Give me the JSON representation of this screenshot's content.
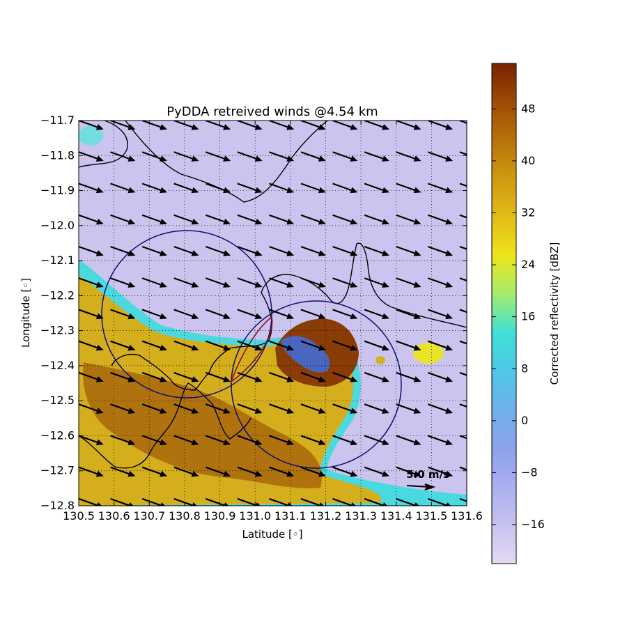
{
  "figure": {
    "title": "PyDDA retreived winds @4.54 km",
    "xlabel": "Latitude [◦]",
    "ylabel": "Longitude [◦]",
    "quiver_key": "5.0 m/s"
  },
  "colors": {
    "background_echo": "#cbc4ef",
    "land_echo": "#d6b21e",
    "coastline": "#000000",
    "radar_ring": "#0b0b6e",
    "dual_doppler_lobe": "#8b0d1e",
    "arrow": "#000000"
  },
  "colorbar": {
    "label": "Corrected reflectivity [dBZ]",
    "min": -22,
    "max": 55,
    "ticks": [
      "48",
      "40",
      "32",
      "24",
      "16",
      "8",
      "0",
      "−8",
      "−16"
    ],
    "tick_values": [
      48,
      40,
      32,
      24,
      16,
      8,
      0,
      -8,
      -16
    ],
    "colormap": [
      "#e6d9f4",
      "#c7c2ef",
      "#aab0ee",
      "#8ca1ec",
      "#6fb0ec",
      "#4ec8e6",
      "#3fe0d6",
      "#a4ec6e",
      "#eee51a",
      "#e2bd18",
      "#cf9a12",
      "#b8730a",
      "#9c4b05",
      "#7a2002"
    ]
  },
  "chart_data": {
    "type": "heatmap",
    "title": "PyDDA retreived winds @4.54 km",
    "xlabel": "Latitude [◦]",
    "ylabel": "Longitude [◦]",
    "xlim": [
      130.5,
      131.6
    ],
    "ylim": [
      -12.8,
      -11.7
    ],
    "x_ticks": [
      "130.5",
      "130.6",
      "130.7",
      "130.8",
      "130.9",
      "131.0",
      "131.1",
      "131.2",
      "131.3",
      "131.4",
      "131.5",
      "131.6"
    ],
    "x_tick_values": [
      130.5,
      130.6,
      130.7,
      130.8,
      130.9,
      131.0,
      131.1,
      131.2,
      131.3,
      131.4,
      131.5,
      131.6
    ],
    "y_ticks": [
      "−11.7",
      "−11.8",
      "−11.9",
      "−12.0",
      "−12.1",
      "−12.2",
      "−12.3",
      "−12.4",
      "−12.5",
      "−12.6",
      "−12.7",
      "−12.8"
    ],
    "y_tick_values": [
      -11.7,
      -11.8,
      -11.9,
      -12.0,
      -12.1,
      -12.2,
      -12.3,
      -12.4,
      -12.5,
      -12.6,
      -12.7,
      -12.8
    ],
    "grid": true,
    "wind_vector": {
      "u": 4.5,
      "v": -1.6,
      "spacing": 0.09
    },
    "quiver_key": {
      "label": "5.0 m/s",
      "speed": 5.0
    },
    "radar_coverage": [
      {
        "center": [
          130.8,
          -12.25
        ],
        "radius": 0.24
      },
      {
        "center": [
          131.17,
          -12.45
        ],
        "radius": 0.24
      }
    ]
  }
}
